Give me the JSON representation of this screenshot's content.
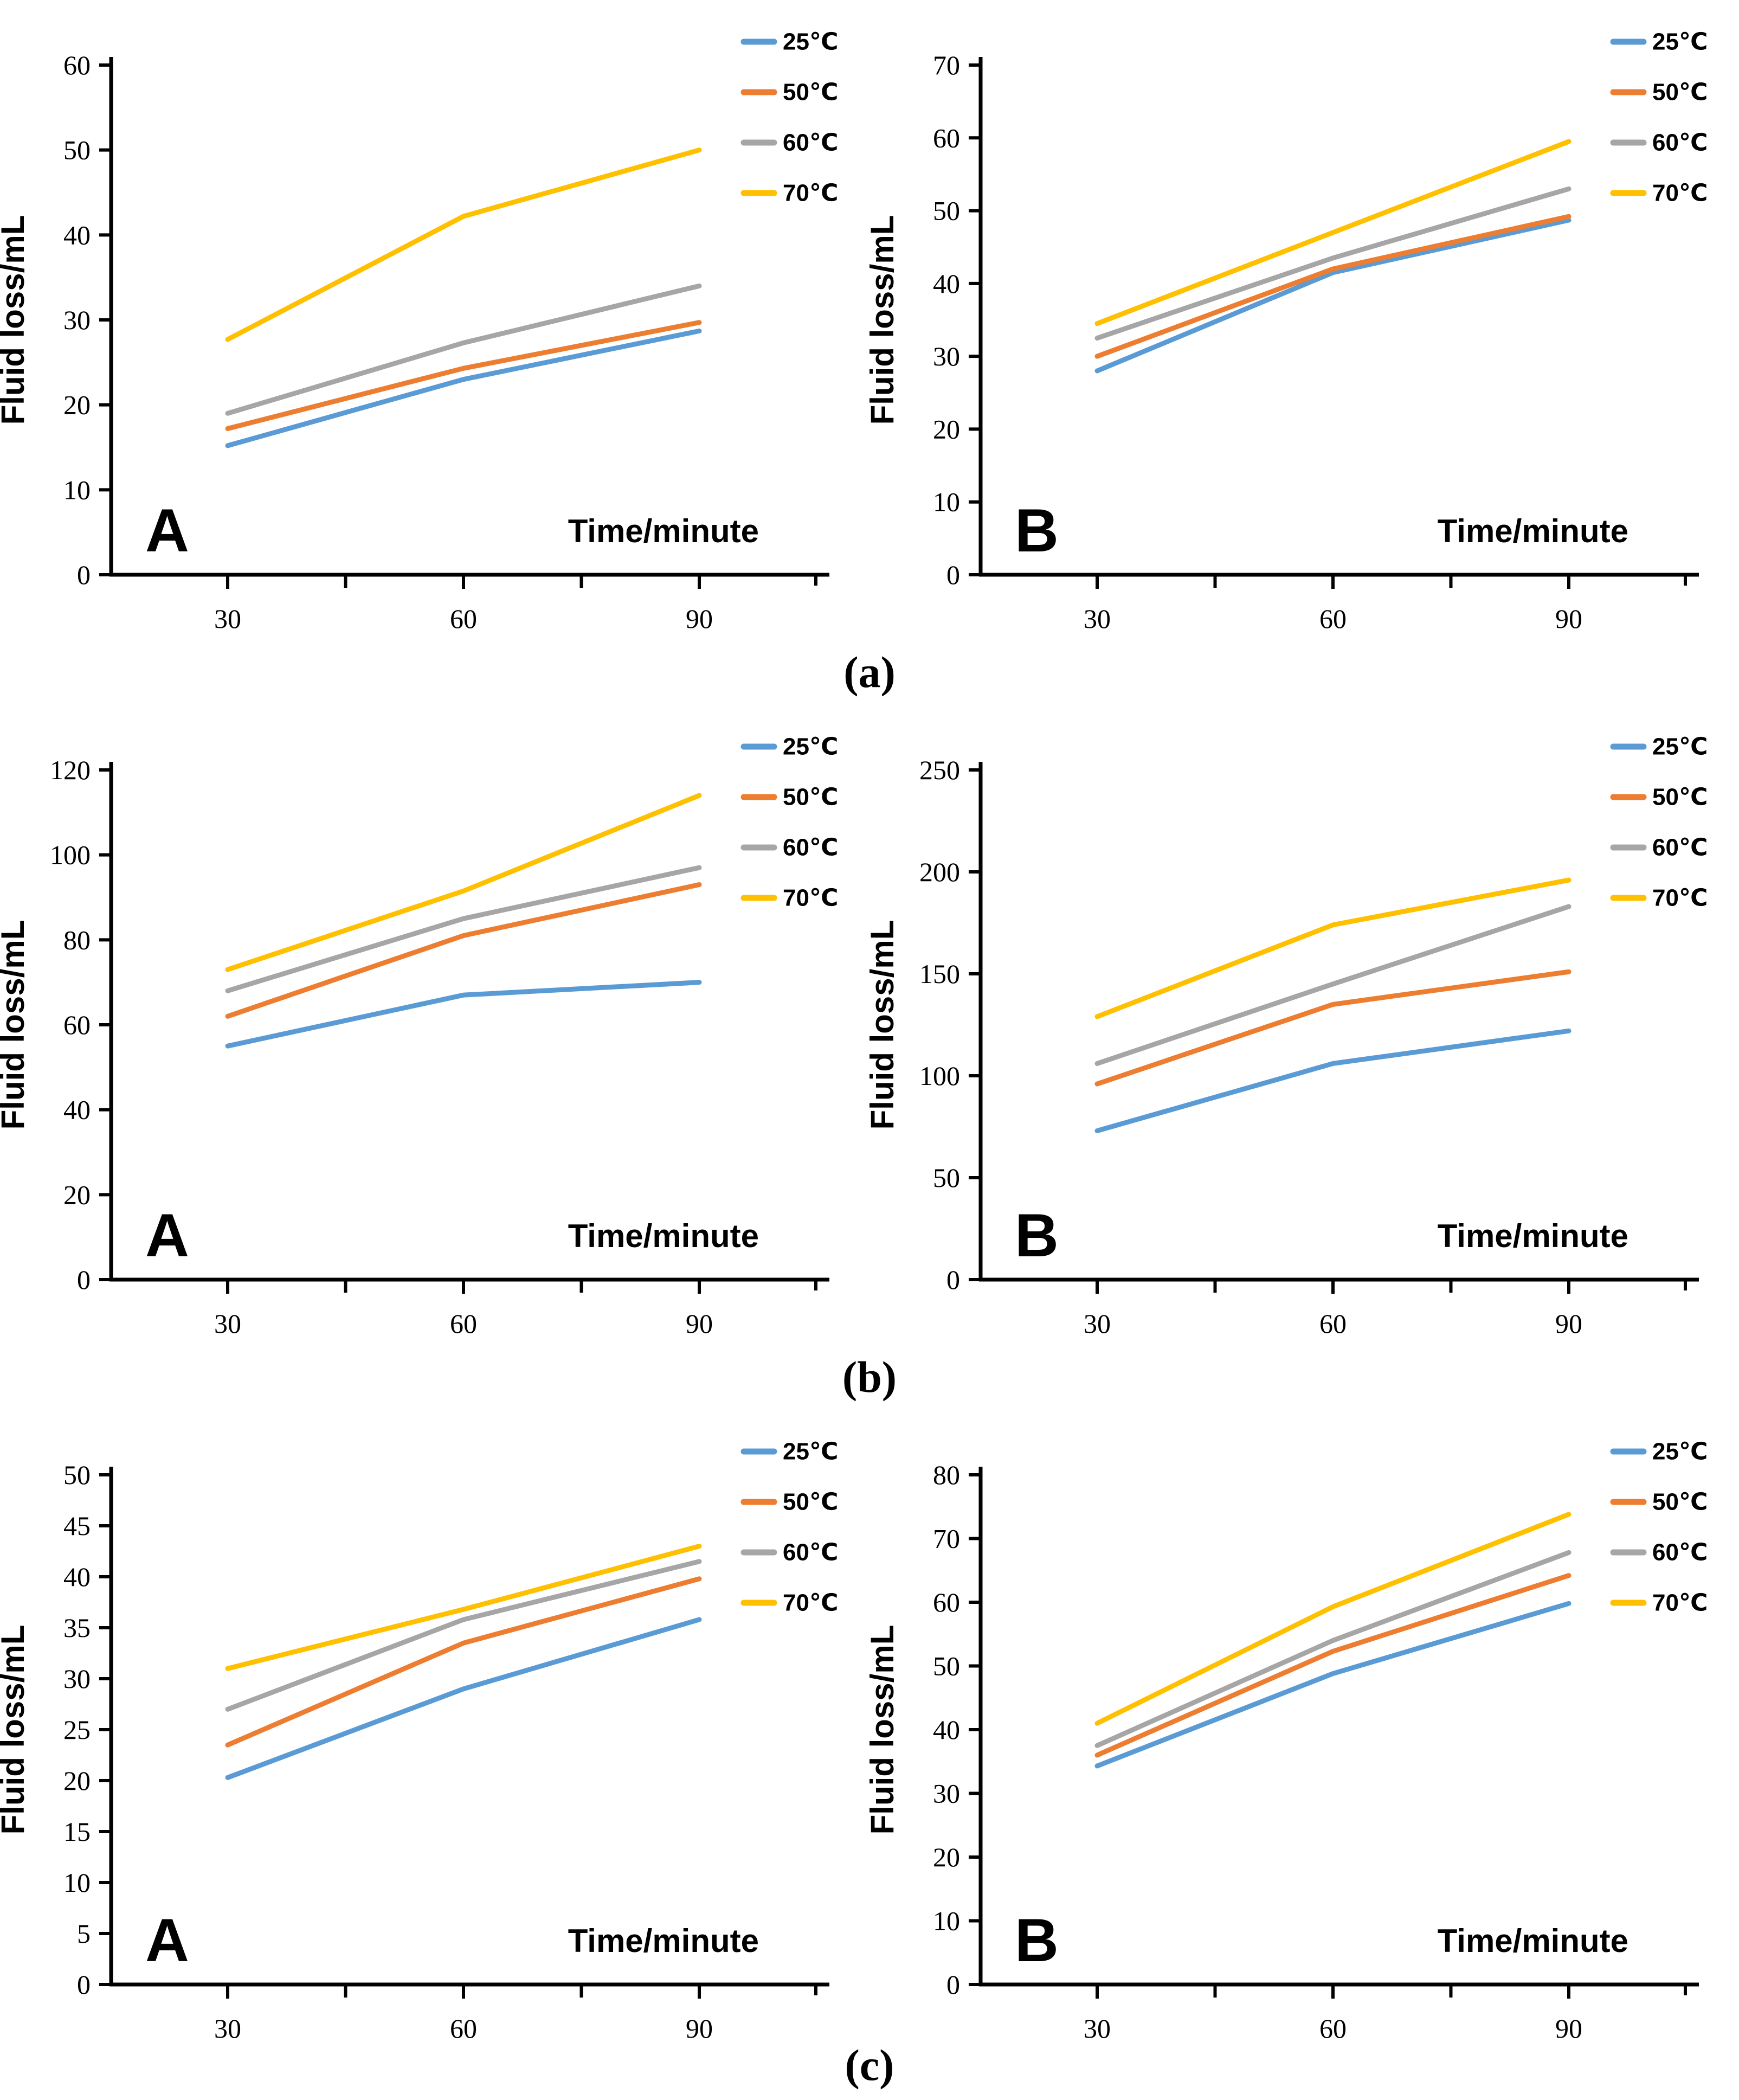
{
  "captions": {
    "a": "(a)",
    "b": "(b)",
    "c": "(c)"
  },
  "chart_data": {
    "type": "line",
    "x_label": "Time/minute",
    "y_label": "Fluid loss/mL",
    "x": [
      30,
      60,
      90
    ],
    "x_minor_ticks": [
      45,
      75
    ],
    "legend_position": "top-right",
    "grid": false,
    "series_colors": {
      "25℃": "#5B9BD5",
      "50℃": "#ED7D31",
      "60℃": "#A6A6A6",
      "70℃": "#FFC000"
    },
    "legend": [
      "25℃",
      "50℃",
      "60℃",
      "70℃"
    ],
    "panels": [
      {
        "group": "a",
        "panel": "A",
        "ylim": [
          0,
          60
        ],
        "ystep": 10,
        "series": [
          {
            "name": "25℃",
            "values": [
              15.2,
              23.0,
              28.7
            ]
          },
          {
            "name": "50℃",
            "values": [
              17.2,
              24.3,
              29.7
            ]
          },
          {
            "name": "60℃",
            "values": [
              19.0,
              27.3,
              34.0
            ]
          },
          {
            "name": "70℃",
            "values": [
              27.7,
              42.2,
              50.0
            ]
          }
        ]
      },
      {
        "group": "a",
        "panel": "B",
        "ylim": [
          0,
          70
        ],
        "ystep": 10,
        "series": [
          {
            "name": "25℃",
            "values": [
              28.0,
              41.5,
              48.7
            ]
          },
          {
            "name": "50℃",
            "values": [
              30.0,
              42.0,
              49.2
            ]
          },
          {
            "name": "60℃",
            "values": [
              32.5,
              43.5,
              53.0
            ]
          },
          {
            "name": "70℃",
            "values": [
              34.5,
              47.0,
              59.5
            ]
          }
        ]
      },
      {
        "group": "b",
        "panel": "A",
        "ylim": [
          0,
          120
        ],
        "ystep": 20,
        "series": [
          {
            "name": "25℃",
            "values": [
              55.0,
              67.0,
              70.0
            ]
          },
          {
            "name": "50℃",
            "values": [
              62.0,
              81.0,
              93.0
            ]
          },
          {
            "name": "60℃",
            "values": [
              68.0,
              85.0,
              97.0
            ]
          },
          {
            "name": "70℃",
            "values": [
              73.0,
              91.5,
              114.0
            ]
          }
        ]
      },
      {
        "group": "b",
        "panel": "B",
        "ylim": [
          0,
          250
        ],
        "ystep": 50,
        "series": [
          {
            "name": "25℃",
            "values": [
              73.0,
              106.0,
              122.0
            ]
          },
          {
            "name": "50℃",
            "values": [
              96.0,
              135.0,
              151.0
            ]
          },
          {
            "name": "60℃",
            "values": [
              106.0,
              145.0,
              183.0
            ]
          },
          {
            "name": "70℃",
            "values": [
              129.0,
              174.0,
              196.0
            ]
          }
        ]
      },
      {
        "group": "c",
        "panel": "A",
        "ylim": [
          0,
          50
        ],
        "ystep": 5,
        "series": [
          {
            "name": "25℃",
            "values": [
              20.3,
              29.0,
              35.8
            ]
          },
          {
            "name": "50℃",
            "values": [
              23.5,
              33.5,
              39.8
            ]
          },
          {
            "name": "60℃",
            "values": [
              27.0,
              35.8,
              41.5
            ]
          },
          {
            "name": "70℃",
            "values": [
              31.0,
              36.8,
              43.0
            ]
          }
        ]
      },
      {
        "group": "c",
        "panel": "B",
        "ylim": [
          0,
          80
        ],
        "ystep": 10,
        "series": [
          {
            "name": "25℃",
            "values": [
              34.3,
              48.8,
              59.8
            ]
          },
          {
            "name": "50℃",
            "values": [
              36.0,
              52.3,
              64.2
            ]
          },
          {
            "name": "60℃",
            "values": [
              37.5,
              54.0,
              67.8
            ]
          },
          {
            "name": "70℃",
            "values": [
              41.0,
              59.3,
              73.8
            ]
          }
        ]
      }
    ]
  }
}
